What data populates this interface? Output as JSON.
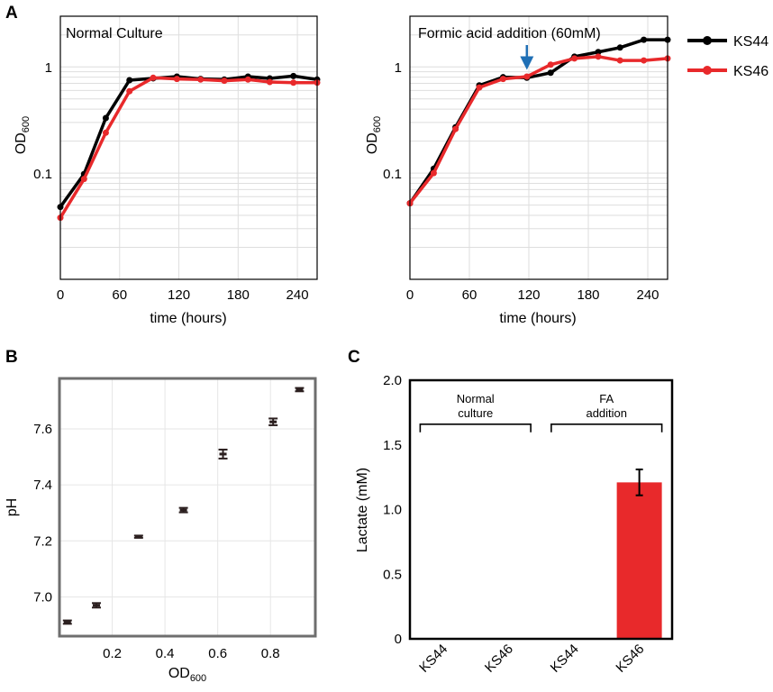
{
  "chart_data": [
    {
      "panel": "A",
      "type": "line",
      "title": "Normal Culture",
      "xlabel": "time (hours)",
      "ylabel": "OD",
      "ylabel_sub": "600",
      "yscale": "log",
      "xlim": [
        0,
        260
      ],
      "ylim": [
        0.01,
        3
      ],
      "xticks": [
        0,
        60,
        120,
        180,
        240
      ],
      "xtick_labels": [
        "0",
        "60",
        "120",
        "180",
        "240"
      ],
      "yticks": [
        0.1,
        1
      ],
      "ytick_labels": [
        "0.1",
        "1"
      ],
      "grid": true,
      "x": [
        0,
        24,
        46,
        70,
        94,
        118,
        142,
        166,
        190,
        212,
        236,
        260
      ],
      "series": [
        {
          "name": "KS44",
          "color": "#000000",
          "values": [
            0.048,
            0.098,
            0.33,
            0.75,
            0.78,
            0.81,
            0.77,
            0.76,
            0.81,
            0.78,
            0.82,
            0.76
          ]
        },
        {
          "name": "KS46",
          "color": "#e8292b",
          "values": [
            0.038,
            0.088,
            0.24,
            0.59,
            0.79,
            0.77,
            0.76,
            0.74,
            0.76,
            0.72,
            0.71,
            0.71
          ]
        }
      ]
    },
    {
      "panel": "",
      "type": "line",
      "title": "Formic acid addition (60mM)",
      "xlabel": "time (hours)",
      "ylabel": "OD",
      "ylabel_sub": "600",
      "yscale": "log",
      "xlim": [
        0,
        260
      ],
      "ylim": [
        0.01,
        3
      ],
      "xticks": [
        0,
        60,
        120,
        180,
        240
      ],
      "xtick_labels": [
        "0",
        "60",
        "120",
        "180",
        "240"
      ],
      "yticks": [
        0.1,
        1
      ],
      "ytick_labels": [
        "0.1",
        "1"
      ],
      "grid": true,
      "annotation": {
        "type": "arrow",
        "x": 118,
        "color": "#1f6fb5"
      },
      "legend": {
        "position": "outside-right",
        "entries": [
          "KS44",
          "KS46"
        ]
      },
      "x": [
        0,
        24,
        46,
        70,
        94,
        118,
        142,
        166,
        190,
        212,
        236,
        260
      ],
      "series": [
        {
          "name": "KS44",
          "color": "#000000",
          "values": [
            0.052,
            0.11,
            0.27,
            0.67,
            0.8,
            0.79,
            0.88,
            1.25,
            1.38,
            1.52,
            1.8,
            1.8
          ]
        },
        {
          "name": "KS46",
          "color": "#e8292b",
          "values": [
            0.052,
            0.1,
            0.26,
            0.64,
            0.77,
            0.81,
            1.05,
            1.2,
            1.25,
            1.15,
            1.15,
            1.2
          ]
        }
      ]
    },
    {
      "panel": "B",
      "type": "scatter",
      "title": "",
      "xlabel": "OD",
      "xlabel_sub": "600",
      "ylabel": "pH",
      "xlim": [
        0,
        0.97
      ],
      "ylim": [
        6.86,
        7.78
      ],
      "xticks": [
        0.2,
        0.4,
        0.6,
        0.8
      ],
      "xtick_labels": [
        "0.2",
        "0.4",
        "0.6",
        "0.8"
      ],
      "yticks": [
        7.0,
        7.2,
        7.4,
        7.6
      ],
      "ytick_labels": [
        "7.0",
        "7.2",
        "7.4",
        "7.6"
      ],
      "grid": true,
      "points": [
        {
          "x": 0.03,
          "y": 6.91,
          "err": 0.006
        },
        {
          "x": 0.14,
          "y": 6.97,
          "err": 0.008
        },
        {
          "x": 0.3,
          "y": 7.215,
          "err": 0.004
        },
        {
          "x": 0.47,
          "y": 7.31,
          "err": 0.008
        },
        {
          "x": 0.62,
          "y": 7.51,
          "err": 0.016
        },
        {
          "x": 0.81,
          "y": 7.625,
          "err": 0.012
        },
        {
          "x": 0.91,
          "y": 7.74,
          "err": 0.006
        }
      ]
    },
    {
      "panel": "C",
      "type": "bar",
      "title": "",
      "xlabel": "",
      "ylabel": "Lactate (mM)",
      "ylim": [
        0,
        2.0
      ],
      "yticks": [
        0,
        0.5,
        1.0,
        1.5,
        2.0
      ],
      "ytick_labels": [
        "0",
        "0.5",
        "1.0",
        "1.5",
        "2.0"
      ],
      "categories": [
        "KS44",
        "KS46",
        "KS44",
        "KS46"
      ],
      "values": [
        0,
        0,
        0,
        1.21
      ],
      "errors": [
        0,
        0,
        0,
        0.1
      ],
      "bar_color": "#e8292b",
      "groups": [
        {
          "label": [
            "Normal",
            "culture"
          ],
          "from": 0,
          "to": 1
        },
        {
          "label": [
            "FA",
            "addition"
          ],
          "from": 2,
          "to": 3
        }
      ]
    }
  ]
}
